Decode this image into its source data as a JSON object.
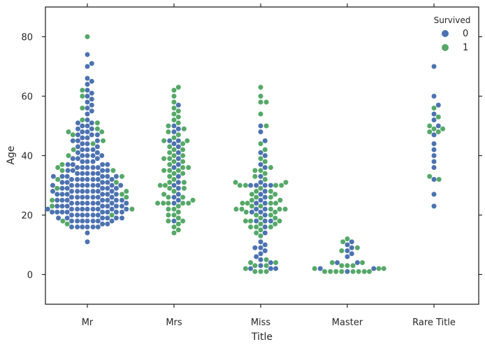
{
  "chart_data": {
    "type": "scatter",
    "subtype": "swarm",
    "title": "",
    "xlabel": "Title",
    "ylabel": "Age",
    "categories": [
      "Mr",
      "Mrs",
      "Miss",
      "Master",
      "Rare Title"
    ],
    "ylim": [
      -10,
      90
    ],
    "yticks": [
      0,
      20,
      40,
      60,
      80
    ],
    "grid": false,
    "legend": {
      "title": "Survived",
      "placement": "top-right",
      "entries": [
        {
          "label": "0",
          "color": "#4c72b0"
        },
        {
          "label": "1",
          "color": "#55a868"
        }
      ]
    },
    "series": [
      {
        "name": "0",
        "color": "#4c72b0",
        "groups": [
          {
            "category": "Mr",
            "ages": [
              11,
              14,
              16,
              16,
              16,
              16,
              16,
              16,
              17,
              17,
              18,
              18,
              18,
              18,
              18,
              18,
              18,
              19,
              19,
              19,
              19,
              19,
              19,
              20,
              20,
              20,
              20,
              20,
              20,
              21,
              21,
              21,
              21,
              21,
              21,
              21,
              21,
              22,
              22,
              22,
              22,
              22,
              22,
              22,
              22,
              22,
              23,
              23,
              23,
              23,
              23,
              23,
              23,
              24,
              24,
              24,
              24,
              24,
              24,
              24,
              24,
              25,
              25,
              25,
              25,
              25,
              25,
              25,
              26,
              26,
              26,
              26,
              26,
              26,
              26,
              27,
              27,
              27,
              27,
              27,
              27,
              28,
              28,
              28,
              28,
              28,
              28,
              28,
              28,
              29,
              29,
              29,
              29,
              29,
              30,
              30,
              30,
              30,
              30,
              30,
              30,
              30,
              30,
              31,
              31,
              31,
              31,
              32,
              32,
              32,
              32,
              32,
              32,
              32,
              33,
              33,
              33,
              33,
              33,
              33,
              34,
              34,
              34,
              34,
              34,
              35,
              35,
              35,
              35,
              36,
              36,
              36,
              36,
              36,
              37,
              37,
              37,
              37,
              38,
              38,
              38,
              39,
              39,
              39,
              40,
              40,
              40,
              40,
              41,
              41,
              42,
              42,
              42,
              43,
              43,
              44,
              44,
              45,
              45,
              45,
              46,
              46,
              47,
              47,
              47,
              48,
              48,
              49,
              49,
              50,
              50,
              51,
              51,
              52,
              54,
              55,
              56,
              57,
              58,
              59,
              60,
              61,
              62,
              64,
              65,
              66,
              70,
              71,
              74
            ]
          },
          {
            "category": "Mrs",
            "ages": [
              18,
              24,
              25,
              26,
              27,
              29,
              30,
              31,
              33,
              36,
              37,
              39,
              41,
              43,
              44,
              45,
              45,
              48,
              49,
              50,
              57
            ]
          },
          {
            "category": "Miss",
            "ages": [
              2,
              2,
              2,
              3,
              4,
              5,
              6,
              7,
              8,
              9,
              9,
              10,
              11,
              14,
              16,
              18,
              18,
              18,
              20,
              21,
              21,
              22,
              22,
              24,
              24,
              25,
              26,
              27,
              28,
              30,
              30,
              30,
              30,
              31,
              33,
              36,
              37,
              40,
              41,
              45,
              48,
              50
            ]
          },
          {
            "category": "Master",
            "ages": [
              1,
              2,
              2,
              4,
              4,
              6,
              7,
              8,
              9,
              10,
              11
            ]
          },
          {
            "category": "Rare Title",
            "ages": [
              23,
              27,
              32,
              36,
              38,
              40,
              42,
              44,
              47,
              50,
              52,
              54,
              57,
              60,
              70
            ]
          }
        ]
      },
      {
        "name": "1",
        "color": "#55a868",
        "groups": [
          {
            "category": "Mr",
            "ages": [
              17,
              18,
              20,
              22,
              23,
              25,
              26,
              27,
              28,
              29,
              31,
              32,
              33,
              35,
              35,
              36,
              37,
              40,
              42,
              44,
              45,
              47,
              48,
              48,
              49,
              51,
              52,
              56,
              60,
              62,
              80
            ]
          },
          {
            "category": "Mrs",
            "ages": [
              14,
              15,
              16,
              17,
              18,
              18,
              19,
              20,
              20,
              21,
              22,
              22,
              23,
              24,
              24,
              24,
              24,
              24,
              25,
              26,
              26,
              27,
              28,
              29,
              29,
              30,
              30,
              31,
              31,
              32,
              33,
              34,
              34,
              35,
              35,
              35,
              36,
              36,
              37,
              38,
              38,
              39,
              39,
              40,
              40,
              41,
              42,
              42,
              43,
              44,
              45,
              45,
              46,
              47,
              48,
              49,
              50,
              51,
              52,
              53,
              54,
              55,
              56,
              58,
              60,
              62,
              63
            ]
          },
          {
            "category": "Miss",
            "ages": [
              1,
              1,
              1,
              2,
              3,
              3,
              4,
              4,
              5,
              13,
              14,
              15,
              16,
              16,
              16,
              17,
              17,
              18,
              18,
              18,
              19,
              19,
              20,
              20,
              21,
              21,
              22,
              22,
              22,
              22,
              22,
              23,
              23,
              24,
              24,
              24,
              24,
              25,
              25,
              26,
              26,
              27,
              27,
              28,
              28,
              29,
              30,
              30,
              30,
              30,
              31,
              31,
              32,
              33,
              34,
              35,
              35,
              36,
              38,
              39,
              42,
              44,
              50,
              54,
              58,
              58,
              60,
              63
            ]
          },
          {
            "category": "Master",
            "ages": [
              1,
              1,
              1,
              1,
              1,
              1,
              1,
              1,
              2,
              2,
              2,
              3,
              3,
              3,
              4,
              4,
              8,
              9,
              11,
              12
            ]
          },
          {
            "category": "Rare Title",
            "ages": [
              32,
              33,
              48,
              48,
              49,
              49,
              50,
              53,
              56
            ]
          }
        ]
      }
    ]
  }
}
